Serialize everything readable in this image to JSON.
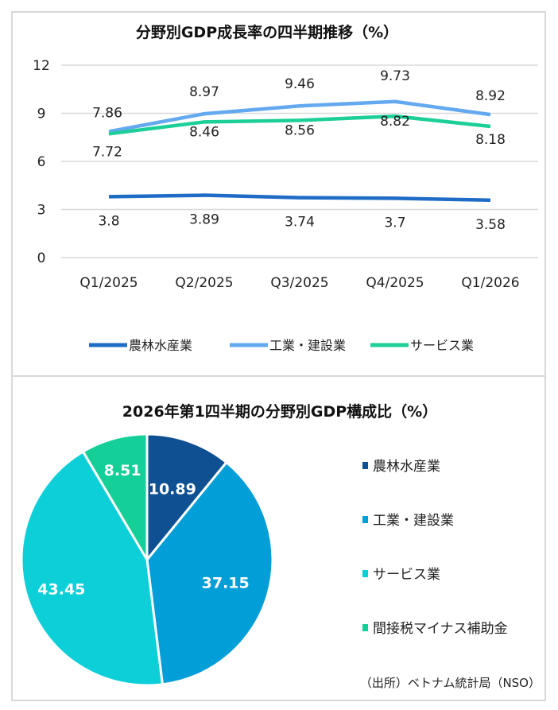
{
  "chart_data": [
    {
      "type": "line",
      "title": "分野別GDP成長率の四半期推移（%）",
      "categories": [
        "Q1/2025",
        "Q2/2025",
        "Q3/2025",
        "Q4/2025",
        "Q1/2026"
      ],
      "ylim": [
        0,
        12
      ],
      "yticks": [
        "0",
        "3",
        "6",
        "9",
        "12"
      ],
      "grid": true,
      "legend_position": "bottom",
      "series": [
        {
          "name": "農林水産業",
          "color": "#1f6cc6",
          "values": [
            3.8,
            3.89,
            3.74,
            3.7,
            3.58
          ],
          "labels": [
            "3.8",
            "3.89",
            "3.74",
            "3.7",
            "3.58"
          ]
        },
        {
          "name": "工業・建設業",
          "color": "#63a9ef",
          "values": [
            7.86,
            8.97,
            9.46,
            9.73,
            8.92
          ],
          "labels": [
            "7.86",
            "8.97",
            "9.46",
            "9.73",
            "8.92"
          ]
        },
        {
          "name": "サービス業",
          "color": "#1ccf98",
          "values": [
            7.72,
            8.46,
            8.56,
            8.82,
            8.18
          ],
          "labels": [
            "7.72",
            "8.46",
            "8.56",
            "8.82",
            "8.18"
          ]
        }
      ]
    },
    {
      "type": "pie",
      "title": "2026年第1四半期の分野別GDP構成比（%）",
      "legend_position": "right",
      "slices": [
        {
          "name": "農林水産業",
          "value": 10.89,
          "label": "10.89",
          "color": "#0e5092"
        },
        {
          "name": "工業・建設業",
          "value": 37.15,
          "label": "37.15",
          "color": "#029ed7"
        },
        {
          "name": "サービス業",
          "value": 43.45,
          "label": "43.45",
          "color": "#0dcfd8"
        },
        {
          "name": "間接税マイナス補助金",
          "value": 8.51,
          "label": "8.51",
          "color": "#14cf98"
        }
      ]
    }
  ],
  "source": "（出所）ベトナム統計局（NSO）"
}
